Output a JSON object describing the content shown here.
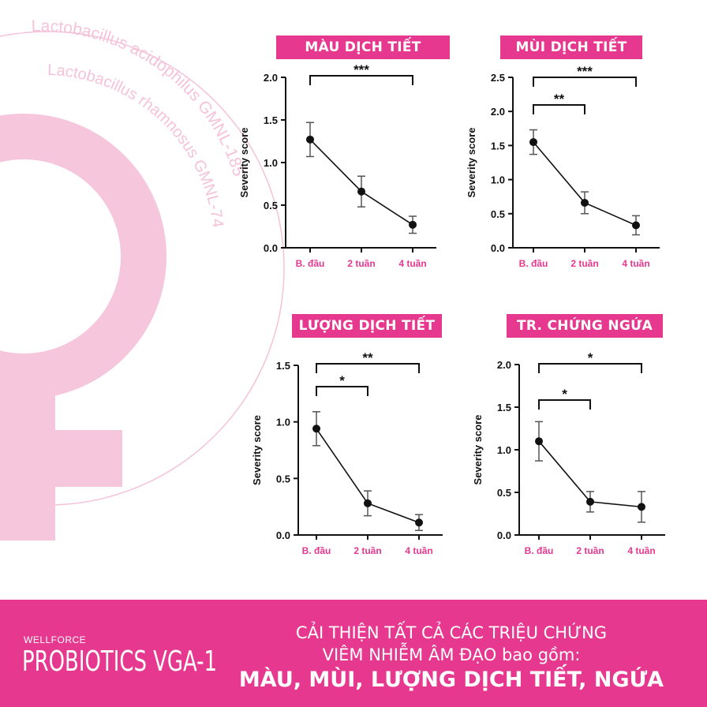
{
  "background": {
    "curve_text_1": "Lactobacillus acidophilus GMNL-185",
    "curve_text_2": "Lactobacillus rhamnosus GMNL-74"
  },
  "colors": {
    "accent": "#e6388f",
    "symbol": "#f6c6dc",
    "curve_text": "#f5c3d9"
  },
  "chart_data": [
    {
      "type": "line",
      "title": "MÀU DỊCH TIẾT",
      "ylabel": "Severity score",
      "categories": [
        "B. đầu",
        "2 tuần",
        "4 tuần"
      ],
      "values": [
        1.27,
        0.66,
        0.27
      ],
      "error": [
        0.2,
        0.18,
        0.1
      ],
      "ylim": [
        0,
        2.0
      ],
      "yticks": [
        "0.0",
        "0.5",
        "1.0",
        "1.5",
        "2.0"
      ],
      "significance": [
        {
          "from": 0,
          "to": 2,
          "label": "***"
        }
      ]
    },
    {
      "type": "line",
      "title": "MÙI DỊCH TIẾT",
      "ylabel": "Severity score",
      "categories": [
        "B. đầu",
        "2 tuần",
        "4 tuần"
      ],
      "values": [
        1.55,
        0.66,
        0.33
      ],
      "error": [
        0.18,
        0.16,
        0.14
      ],
      "ylim": [
        0,
        2.5
      ],
      "yticks": [
        "0.0",
        "0.5",
        "1.0",
        "1.5",
        "2.0",
        "2.5"
      ],
      "significance": [
        {
          "from": 0,
          "to": 2,
          "label": "***"
        },
        {
          "from": 0,
          "to": 1,
          "label": "**"
        }
      ]
    },
    {
      "type": "line",
      "title": "LƯỢNG DỊCH TIẾT",
      "ylabel": "Severity score",
      "categories": [
        "B. đầu",
        "2 tuần",
        "4 tuần"
      ],
      "values": [
        0.94,
        0.28,
        0.11
      ],
      "error": [
        0.15,
        0.11,
        0.07
      ],
      "ylim": [
        0,
        1.5
      ],
      "yticks": [
        "0.0",
        "0.5",
        "1.0",
        "1.5"
      ],
      "significance": [
        {
          "from": 0,
          "to": 2,
          "label": "**"
        },
        {
          "from": 0,
          "to": 1,
          "label": "*"
        }
      ]
    },
    {
      "type": "line",
      "title": "TR. CHỨNG NGỨA",
      "ylabel": "Severity score",
      "categories": [
        "B. đầu",
        "2 tuần",
        "4 tuần"
      ],
      "values": [
        1.1,
        0.39,
        0.33
      ],
      "error": [
        0.23,
        0.12,
        0.18
      ],
      "ylim": [
        0,
        2.0
      ],
      "yticks": [
        "0.0",
        "0.5",
        "1.0",
        "1.5",
        "2.0"
      ],
      "significance": [
        {
          "from": 0,
          "to": 2,
          "label": "*"
        },
        {
          "from": 0,
          "to": 1,
          "label": "*"
        }
      ]
    }
  ],
  "footer": {
    "brand_small": "WELLFORCE",
    "brand_big": "PROBIOTICS VGA-1",
    "line1": "CẢI THIỆN TẤT CẢ CÁC TRIỆU CHỨNG",
    "line2": "VIÊM NHIỄM ÂM ĐẠO bao gồm:",
    "line3": "MÀU, MÙI, LƯỢNG DỊCH TIẾT, NGỨA"
  }
}
